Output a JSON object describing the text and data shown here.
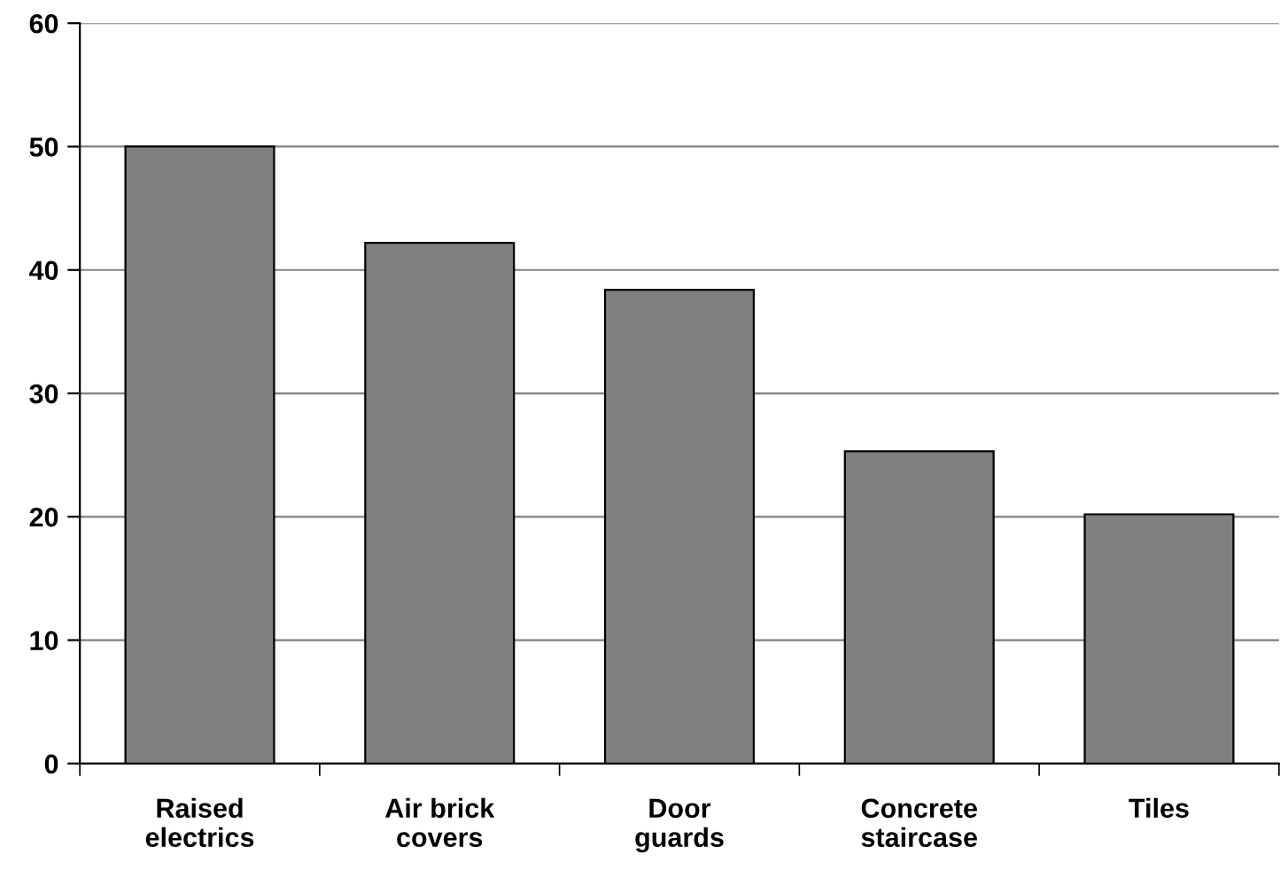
{
  "chart_data": {
    "type": "bar",
    "categories": [
      "Raised\nelectrics",
      "Air brick\ncovers",
      "Door\nguards",
      "Concrete\nstaircase",
      "Tiles"
    ],
    "values": [
      50,
      42.2,
      38.4,
      25.3,
      20.2
    ],
    "color": "#808080",
    "ylim": [
      0,
      60
    ],
    "yticks": [
      0,
      10,
      20,
      30,
      40,
      50,
      60
    ],
    "grid": "y"
  }
}
